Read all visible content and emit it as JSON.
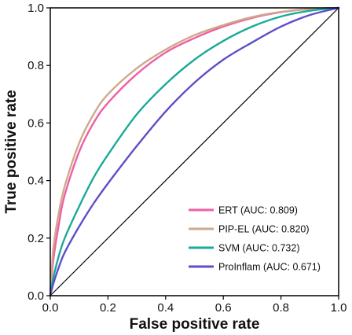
{
  "chart_data": {
    "type": "line",
    "title": "",
    "xlabel": "False positive rate",
    "ylabel": "True positive rate",
    "xlim": [
      0.0,
      1.0
    ],
    "ylim": [
      0.0,
      1.0
    ],
    "x_ticks": [
      "0.0",
      "0.2",
      "0.4",
      "0.6",
      "0.8",
      "1.0"
    ],
    "y_ticks": [
      "0.0",
      "0.2",
      "0.4",
      "0.6",
      "0.8",
      "1.0"
    ],
    "grid": false,
    "legend_position": "bottom-right",
    "series": [
      {
        "name": "ERT (AUC: 0.809)",
        "color": "#ee5fa7",
        "x": [
          0,
          0.01,
          0.03,
          0.05,
          0.1,
          0.15,
          0.2,
          0.3,
          0.4,
          0.5,
          0.6,
          0.7,
          0.8,
          0.9,
          1.0
        ],
        "y": [
          0,
          0.12,
          0.25,
          0.35,
          0.5,
          0.6,
          0.67,
          0.77,
          0.845,
          0.895,
          0.935,
          0.965,
          0.985,
          0.996,
          1.0
        ]
      },
      {
        "name": "PIP-EL (AUC: 0.820)",
        "color": "#cfa98a",
        "x": [
          0,
          0.01,
          0.03,
          0.05,
          0.1,
          0.15,
          0.2,
          0.3,
          0.4,
          0.5,
          0.6,
          0.7,
          0.8,
          0.9,
          1.0
        ],
        "y": [
          0,
          0.16,
          0.29,
          0.38,
          0.53,
          0.63,
          0.7,
          0.79,
          0.855,
          0.905,
          0.94,
          0.968,
          0.986,
          0.996,
          1.0
        ]
      },
      {
        "name": "SVM (AUC: 0.732)",
        "color": "#1aa99a",
        "x": [
          0,
          0.01,
          0.03,
          0.05,
          0.1,
          0.15,
          0.2,
          0.3,
          0.4,
          0.5,
          0.6,
          0.7,
          0.8,
          0.9,
          1.0
        ],
        "y": [
          0,
          0.06,
          0.14,
          0.2,
          0.31,
          0.41,
          0.49,
          0.63,
          0.735,
          0.82,
          0.885,
          0.935,
          0.97,
          0.99,
          1.0
        ]
      },
      {
        "name": "ProInflam (AUC: 0.671)",
        "color": "#5d4ec9",
        "x": [
          0,
          0.01,
          0.03,
          0.05,
          0.1,
          0.15,
          0.2,
          0.3,
          0.4,
          0.5,
          0.6,
          0.7,
          0.8,
          0.9,
          1.0
        ],
        "y": [
          0,
          0.04,
          0.1,
          0.15,
          0.24,
          0.32,
          0.39,
          0.52,
          0.64,
          0.74,
          0.82,
          0.88,
          0.935,
          0.975,
          1.0
        ]
      }
    ],
    "reference_line": {
      "color": "#000000",
      "x": [
        0,
        1
      ],
      "y": [
        0,
        1
      ]
    }
  }
}
